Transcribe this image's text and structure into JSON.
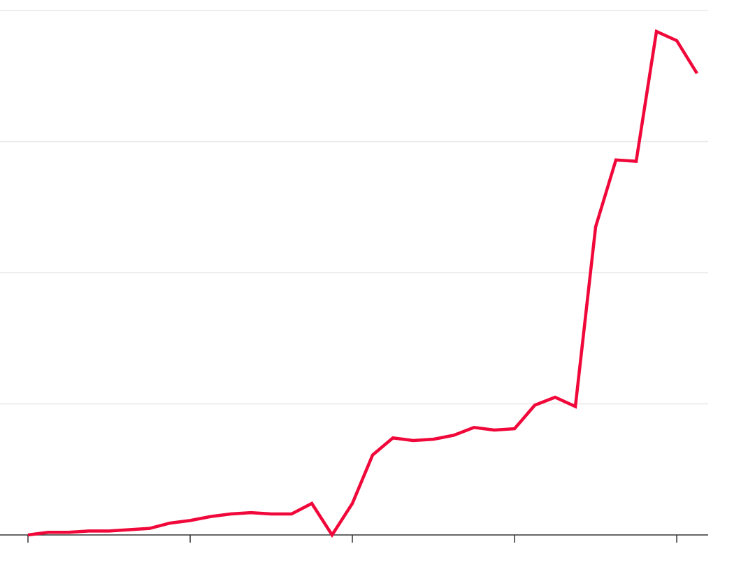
{
  "chart_data": {
    "type": "line",
    "x": [
      0,
      1,
      2,
      3,
      4,
      5,
      6,
      7,
      8,
      9,
      10,
      11,
      12,
      13,
      14,
      15,
      16,
      17,
      18,
      19,
      20,
      21,
      22,
      23,
      24,
      25,
      26,
      27,
      28,
      29,
      30,
      31,
      32,
      33
    ],
    "series": [
      {
        "color": "#f0083a",
        "values": [
          0,
          0.02,
          0.02,
          0.03,
          0.03,
          0.04,
          0.05,
          0.09,
          0.11,
          0.14,
          0.16,
          0.17,
          0.16,
          0.16,
          0.24,
          0,
          0.24,
          0.61,
          0.74,
          0.72,
          0.73,
          0.76,
          0.82,
          0.8,
          0.81,
          0.99,
          1.05,
          0.98,
          2.35,
          2.86,
          2.85,
          3.84,
          3.77,
          3.52
        ]
      }
    ],
    "xlim": [
      -1.38,
      33.55
    ],
    "ylim": [
      0,
      4
    ],
    "xticks": [
      0,
      8,
      16,
      24,
      32
    ],
    "yticks": [
      0,
      1,
      2,
      3,
      4
    ],
    "grid": true
  }
}
